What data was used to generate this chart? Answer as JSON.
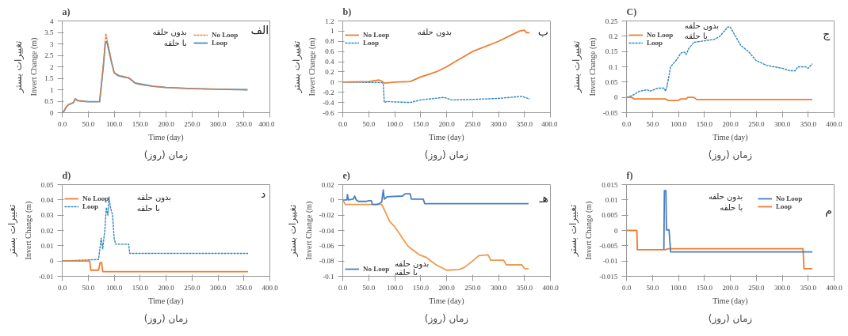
{
  "chart_data": [
    {
      "type": "line",
      "title": "a)",
      "xlabel": "Time (day)",
      "ylabel": "Invert Change (m)",
      "annotations": [
        "الف",
        "بدون حلقه",
        "با حلقه",
        "زمان (روز)",
        "تغییرات بستر"
      ],
      "xlim": [
        0,
        400
      ],
      "xticks": [
        {
          "value": 0,
          "label": "0.0"
        },
        {
          "value": 50,
          "label": "50.0"
        },
        {
          "value": 100,
          "label": "100.0"
        },
        {
          "value": 150,
          "label": "150.0"
        },
        {
          "value": 200,
          "label": "200.0"
        },
        {
          "value": 250,
          "label": "250.0"
        },
        {
          "value": 300,
          "label": "300.0"
        },
        {
          "value": 350,
          "label": "350.0"
        },
        {
          "value": 400,
          "label": "400.0"
        }
      ],
      "ylim": [
        0,
        4
      ],
      "yticks": [
        0,
        0.5,
        1,
        1.5,
        2,
        2.5,
        3,
        3.5,
        4
      ],
      "legend": "top right",
      "series": [
        {
          "name": "No Loop",
          "color": "#ed7d31",
          "line_style": "dashed",
          "x": [
            0,
            3,
            8,
            12,
            18,
            22,
            25,
            30,
            40,
            50,
            60,
            72,
            75,
            80,
            84,
            88,
            92,
            96,
            100,
            105,
            110,
            120,
            128,
            135,
            140,
            150,
            175,
            200,
            250,
            300,
            357
          ],
          "values": [
            0,
            0.05,
            0.25,
            0.35,
            0.4,
            0.45,
            0.62,
            0.53,
            0.5,
            0.48,
            0.48,
            0.48,
            1.1,
            2.3,
            3.45,
            3.0,
            2.6,
            2.1,
            1.75,
            1.68,
            1.62,
            1.58,
            1.5,
            1.38,
            1.28,
            1.22,
            1.15,
            1.1,
            1.05,
            1.02,
            1.0
          ]
        },
        {
          "name": "Loop",
          "color": "#4a8fc4",
          "line_style": "solid",
          "x": [
            0,
            3,
            8,
            12,
            18,
            22,
            25,
            30,
            40,
            50,
            60,
            72,
            75,
            80,
            83,
            86,
            90,
            95,
            100,
            105,
            110,
            120,
            128,
            135,
            140,
            150,
            175,
            200,
            250,
            300,
            357
          ],
          "values": [
            0,
            0.05,
            0.25,
            0.35,
            0.4,
            0.45,
            0.6,
            0.52,
            0.5,
            0.48,
            0.48,
            0.48,
            1.1,
            2.2,
            3.05,
            3.1,
            2.7,
            2.2,
            1.75,
            1.65,
            1.6,
            1.55,
            1.52,
            1.4,
            1.3,
            1.25,
            1.15,
            1.1,
            1.05,
            1.02,
            1.0
          ]
        }
      ]
    },
    {
      "type": "line",
      "title": "b)",
      "xlabel": "Time (day)",
      "ylabel": "Invert Change (m)",
      "annotations": [
        "ب",
        "بدون حلقه",
        "زمان (روز)",
        "تغییرات بستر"
      ],
      "xlim": [
        0,
        400
      ],
      "xticks": [
        {
          "value": 0,
          "label": "0.0"
        },
        {
          "value": 50,
          "label": "50.0"
        },
        {
          "value": 100,
          "label": "100.0"
        },
        {
          "value": 150,
          "label": "150.0"
        },
        {
          "value": 200,
          "label": "200.0"
        },
        {
          "value": 250,
          "label": "250.0"
        },
        {
          "value": 300,
          "label": "300.0"
        },
        {
          "value": 350,
          "label": "350.0"
        },
        {
          "value": 400,
          "label": "400.0"
        }
      ],
      "ylim": [
        -0.6,
        1.2
      ],
      "yticks": [
        -0.6,
        -0.4,
        -0.2,
        0,
        0.2,
        0.4,
        0.6,
        0.8,
        1,
        1.2
      ],
      "legend": "top left",
      "series": [
        {
          "name": "No Loop",
          "color": "#ed7d31",
          "line_style": "solid",
          "x": [
            0,
            50,
            70,
            75,
            80,
            100,
            130,
            150,
            180,
            200,
            225,
            250,
            300,
            340,
            350,
            354,
            360
          ],
          "values": [
            0,
            0.01,
            0.04,
            0.02,
            -0.02,
            0,
            0.01,
            0.1,
            0.2,
            0.3,
            0.45,
            0.6,
            0.8,
            1.0,
            1.02,
            0.97,
            0.97
          ]
        },
        {
          "name": "Loop",
          "color": "#2e86c1",
          "line_style": "dashed",
          "x": [
            0,
            75,
            78,
            80,
            85,
            100,
            130,
            150,
            195,
            210,
            250,
            300,
            345,
            360
          ],
          "values": [
            0,
            -0.01,
            -0.03,
            -0.4,
            -0.38,
            -0.39,
            -0.4,
            -0.35,
            -0.3,
            -0.35,
            -0.34,
            -0.32,
            -0.28,
            -0.33
          ]
        }
      ]
    },
    {
      "type": "line",
      "title": "C)",
      "xlabel": "Time (day)",
      "ylabel": "Invert Change (m)",
      "annotations": [
        "ج",
        "بدون حلقه",
        "با حلقه",
        "زمان (روز)",
        "تغییرات بستر"
      ],
      "xlim": [
        0,
        400
      ],
      "xticks": [
        {
          "value": 0,
          "label": "0.0"
        },
        {
          "value": 50,
          "label": "50.0"
        },
        {
          "value": 100,
          "label": "100.0"
        },
        {
          "value": 150,
          "label": "150.0"
        },
        {
          "value": 200,
          "label": "200.0"
        },
        {
          "value": 250,
          "label": "250.0"
        },
        {
          "value": 300,
          "label": "300.0"
        },
        {
          "value": 350,
          "label": "350.0"
        },
        {
          "value": 400,
          "label": "400.0"
        }
      ],
      "ylim": [
        -0.05,
        0.25
      ],
      "yticks": [
        -0.05,
        0,
        0.05,
        0.1,
        0.15,
        0.2,
        0.25
      ],
      "legend": "top left",
      "series": [
        {
          "name": "No Loop",
          "color": "#ed7d31",
          "line_style": "solid",
          "x": [
            0,
            10,
            15,
            75,
            80,
            100,
            105,
            115,
            118,
            130,
            135,
            358
          ],
          "values": [
            0,
            0,
            -0.005,
            -0.005,
            -0.01,
            -0.01,
            -0.005,
            -0.005,
            0,
            0,
            -0.007,
            -0.007
          ]
        },
        {
          "name": "Loop",
          "color": "#2e86c1",
          "line_style": "dashed",
          "x": [
            0,
            10,
            25,
            40,
            45,
            60,
            73,
            75,
            78,
            85,
            95,
            105,
            112,
            115,
            120,
            130,
            170,
            180,
            195,
            200,
            210,
            220,
            235,
            250,
            270,
            300,
            315,
            325,
            330,
            345,
            350,
            358
          ],
          "values": [
            0,
            0.005,
            0.02,
            0.025,
            0.02,
            0.03,
            0.03,
            0.02,
            0.035,
            0.1,
            0.12,
            0.145,
            0.148,
            0.14,
            0.16,
            0.18,
            0.19,
            0.2,
            0.23,
            0.23,
            0.2,
            0.17,
            0.15,
            0.12,
            0.105,
            0.095,
            0.087,
            0.087,
            0.1,
            0.1,
            0.095,
            0.11
          ]
        }
      ]
    },
    {
      "type": "line",
      "title": "d)",
      "xlabel": "Time (day)",
      "ylabel": "Invert Change (m)",
      "annotations": [
        "د",
        "بدون حلقه",
        "با حلقه",
        "زمان (روز)",
        "تغییرات بستر"
      ],
      "xlim": [
        0,
        400
      ],
      "xticks": [
        {
          "value": 0,
          "label": "0.0"
        },
        {
          "value": 50,
          "label": "50.0"
        },
        {
          "value": 100,
          "label": "100.0"
        },
        {
          "value": 150,
          "label": "150.0"
        },
        {
          "value": 200,
          "label": "200.0"
        },
        {
          "value": 250,
          "label": "250.0"
        },
        {
          "value": 300,
          "label": "300.0"
        },
        {
          "value": 350,
          "label": "350.0"
        },
        {
          "value": 400,
          "label": "400.0"
        }
      ],
      "ylim": [
        -0.01,
        0.05
      ],
      "yticks": [
        -0.01,
        0,
        0.01,
        0.02,
        0.03,
        0.04,
        0.05
      ],
      "legend": "top left",
      "series": [
        {
          "name": "No Loop",
          "color": "#ed7d31",
          "line_style": "solid",
          "x": [
            0,
            53,
            55,
            70,
            73,
            76,
            78,
            358
          ],
          "values": [
            0,
            0,
            -0.006,
            -0.006,
            -0.001,
            -0.001,
            -0.007,
            -0.007
          ]
        },
        {
          "name": "Loop",
          "color": "#2e86c1",
          "line_style": "dashed",
          "x": [
            0,
            70,
            75,
            78,
            82,
            85,
            88,
            90,
            93,
            97,
            100,
            103,
            128,
            130,
            358
          ],
          "values": [
            0,
            0.001,
            0.015,
            0.008,
            0.02,
            0.035,
            0.03,
            0.042,
            0.035,
            0.03,
            0.015,
            0.011,
            0.011,
            0.005,
            0.005
          ]
        }
      ]
    },
    {
      "type": "line",
      "title": "e)",
      "xlabel": "Time (day)",
      "ylabel": "Invert Change (m)",
      "annotations": [
        "هـ",
        "بدون حلقه",
        "با حلقه",
        "زمان (روز)",
        "تغییرات بستر"
      ],
      "xlim": [
        0,
        400
      ],
      "xticks": [
        {
          "value": 0,
          "label": "0.0"
        },
        {
          "value": 50,
          "label": "50.0"
        },
        {
          "value": 100,
          "label": "100.0"
        },
        {
          "value": 150,
          "label": "150.0"
        },
        {
          "value": 200,
          "label": "200.0"
        },
        {
          "value": 250,
          "label": "250.0"
        },
        {
          "value": 300,
          "label": "300.0"
        },
        {
          "value": 350,
          "label": "350.0"
        },
        {
          "value": 400,
          "label": "400.0"
        }
      ],
      "ylim": [
        -0.1,
        0.02
      ],
      "yticks": [
        -0.1,
        -0.08,
        -0.06,
        -0.04,
        -0.02,
        0,
        0.02
      ],
      "legend": "bottom left",
      "series": [
        {
          "name": "No Loop",
          "color": "#4a7fc1",
          "line_style": "solid",
          "x": [
            0,
            8,
            9,
            11,
            20,
            23,
            26,
            30,
            45,
            50,
            55,
            57,
            65,
            70,
            75,
            78,
            80,
            85,
            115,
            120,
            130,
            132,
            155,
            158,
            358
          ],
          "values": [
            0,
            0,
            0.007,
            0,
            0.001,
            0.005,
            0,
            -0.002,
            -0.002,
            -0.001,
            -0.001,
            -0.006,
            -0.006,
            -0.005,
            -0.003,
            0.013,
            0.001,
            0.004,
            0.005,
            0.008,
            0.008,
            0.001,
            0.001,
            -0.005,
            -0.005
          ]
        },
        {
          "color": "#ed9a50",
          "line_style": "solid",
          "x": [
            0,
            5,
            75,
            78,
            85,
            90,
            100,
            105,
            110,
            115,
            120,
            125,
            130,
            140,
            148,
            160,
            170,
            180,
            200,
            225,
            235,
            250,
            262,
            280,
            285,
            310,
            315,
            345,
            350,
            358
          ],
          "values": [
            0,
            -0.006,
            -0.006,
            -0.01,
            -0.02,
            -0.028,
            -0.035,
            -0.04,
            -0.045,
            -0.05,
            -0.055,
            -0.06,
            -0.063,
            -0.068,
            -0.072,
            -0.075,
            -0.08,
            -0.085,
            -0.092,
            -0.091,
            -0.088,
            -0.08,
            -0.073,
            -0.072,
            -0.079,
            -0.079,
            -0.085,
            -0.085,
            -0.09,
            -0.09
          ]
        }
      ]
    },
    {
      "type": "line",
      "title": "f)",
      "xlabel": "Time (day)",
      "ylabel": "Invert Change (m)",
      "annotations": [
        "م",
        "بدون حلقه",
        "با حلقه",
        "زمان (روز)",
        "تغییرات بستر"
      ],
      "xlim": [
        0,
        400
      ],
      "xticks": [
        {
          "value": 0,
          "label": "0.0"
        },
        {
          "value": 50,
          "label": "50.0"
        },
        {
          "value": 100,
          "label": "100.0"
        },
        {
          "value": 150,
          "label": "150.0"
        },
        {
          "value": 200,
          "label": "200.0"
        },
        {
          "value": 250,
          "label": "250.0"
        },
        {
          "value": 300,
          "label": "300.0"
        },
        {
          "value": 350,
          "label": "350.0"
        },
        {
          "value": 400,
          "label": "400.0"
        }
      ],
      "ylim": [
        -0.015,
        0.015
      ],
      "yticks": [
        -0.015,
        -0.01,
        -0.005,
        0,
        0.005,
        0.01,
        0.015
      ],
      "legend": "top right",
      "series": [
        {
          "name": "No Loop",
          "color": "#4a7fc1",
          "line_style": "solid",
          "x": [
            72,
            73,
            76,
            77,
            82,
            85,
            358
          ],
          "values": [
            -0.0063,
            0.013,
            0.013,
            0.0002,
            0.0002,
            -0.007,
            -0.007
          ]
        },
        {
          "name": "Loop",
          "color": "#ed7d31",
          "line_style": "solid",
          "x": [
            0,
            20,
            21,
            75,
            80,
            340,
            342,
            358
          ],
          "values": [
            0,
            0,
            -0.0063,
            -0.0063,
            -0.006,
            -0.006,
            -0.0125,
            -0.0125
          ]
        }
      ]
    }
  ]
}
